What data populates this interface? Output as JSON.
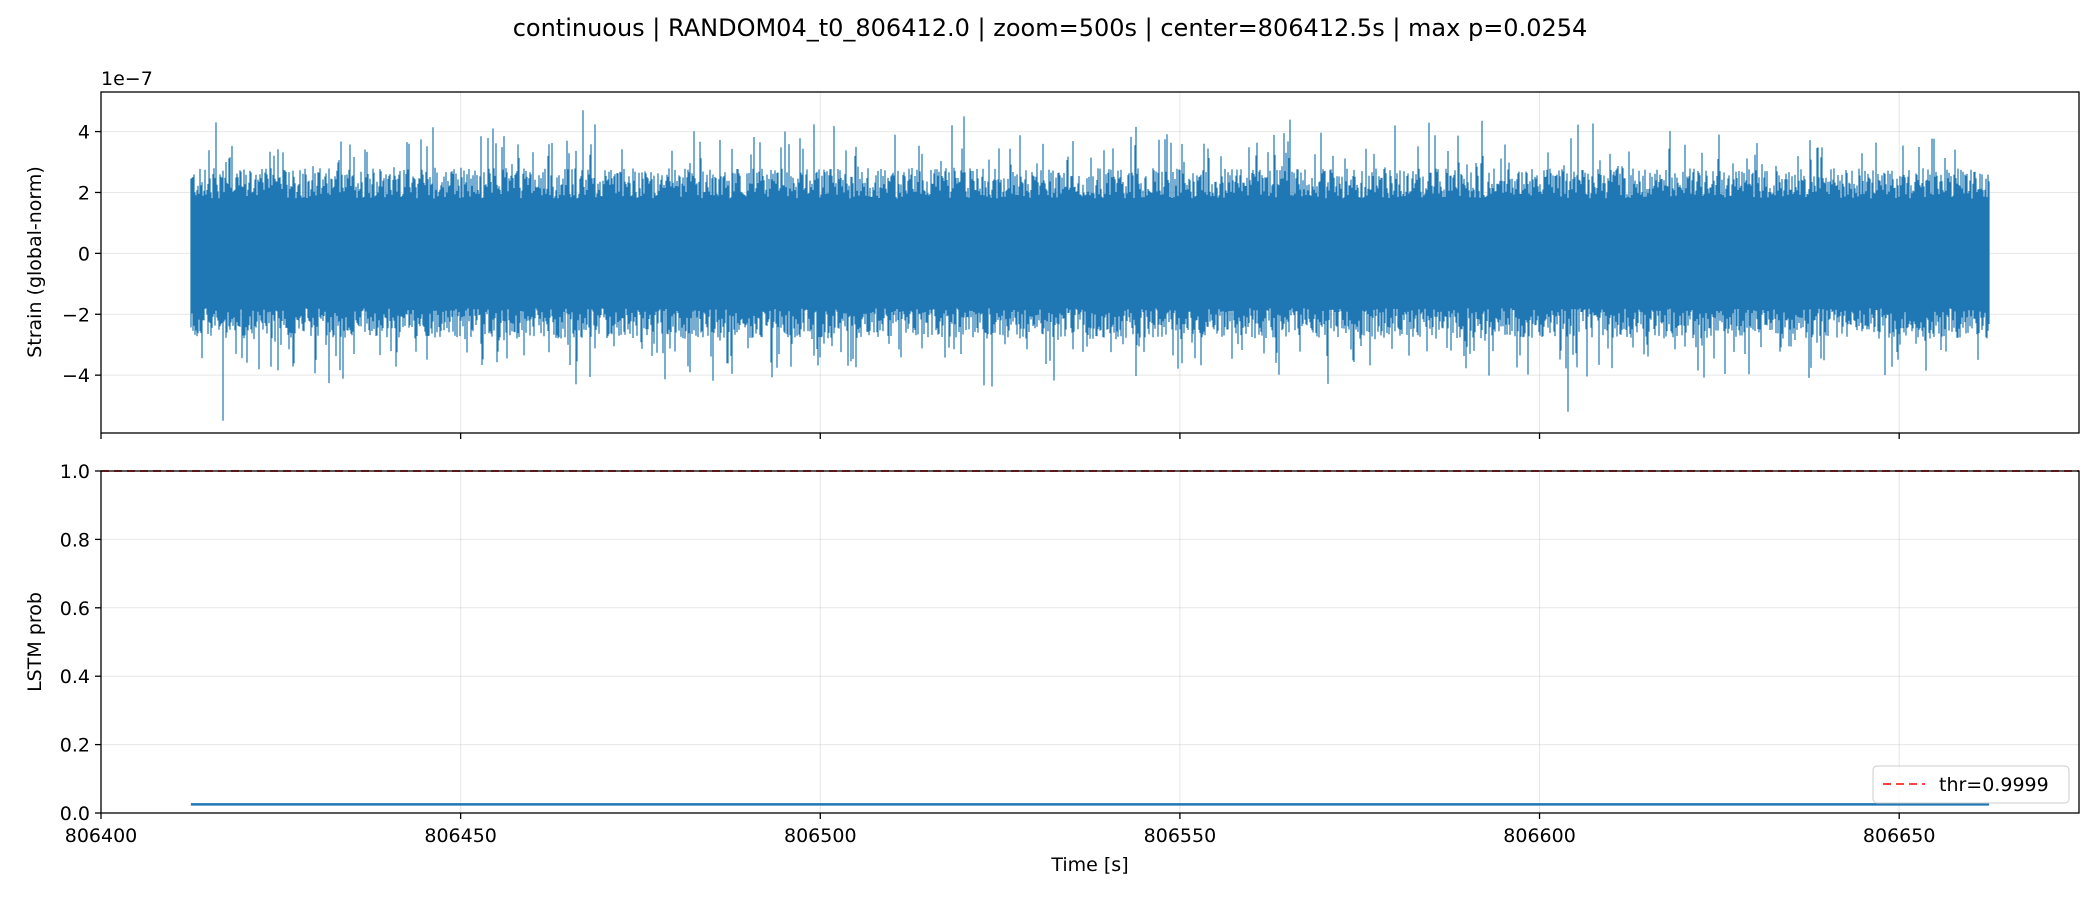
{
  "chart_data": [
    {
      "type": "line",
      "title": "continuous | RANDOM04_t0_806412.0 | zoom=500s | center=806412.5s | max p=0.0254",
      "ylabel": "Strain (global-norm)",
      "offset_text": "1e−7",
      "xlim": [
        806400,
        806675
      ],
      "ylim": [
        -5.9,
        5.3
      ],
      "y_ticks": [
        -4,
        -2,
        0,
        2,
        4
      ],
      "y_tick_labels": [
        "−4",
        "−2",
        "0",
        "2",
        "4"
      ],
      "x_ticks": [
        806400,
        806450,
        806500,
        806550,
        806600,
        806650
      ],
      "grid": true,
      "series": [
        {
          "color": "#1f77b4",
          "x_range": [
            806412.5,
            806662.5
          ],
          "typical_envelope": [
            -1.8,
            1.8
          ],
          "peaks": [
            {
              "x": 806416,
              "y": 4.3
            },
            {
              "x": 806417,
              "y": -5.5
            },
            {
              "x": 806467,
              "y": 4.7
            },
            {
              "x": 806466,
              "y": -4.3
            },
            {
              "x": 806520,
              "y": 4.5
            },
            {
              "x": 806604,
              "y": -5.2
            },
            {
              "x": 806625,
              "y": 3.9
            }
          ]
        }
      ]
    },
    {
      "type": "line",
      "ylabel": "LSTM prob",
      "xlabel": "Time [s]",
      "xlim": [
        806400,
        806675
      ],
      "ylim": [
        0.0,
        1.0
      ],
      "x_ticks": [
        806400,
        806450,
        806500,
        806550,
        806600,
        806650
      ],
      "x_tick_labels": [
        "806400",
        "806450",
        "806500",
        "806550",
        "806600",
        "806650"
      ],
      "y_ticks": [
        0.0,
        0.2,
        0.4,
        0.6,
        0.8,
        1.0
      ],
      "y_tick_labels": [
        "0.0",
        "0.2",
        "0.4",
        "0.6",
        "0.8",
        "1.0"
      ],
      "grid": true,
      "series": [
        {
          "color": "#1f77b4",
          "x": [
            806412.5,
            806662.5
          ],
          "y": [
            0.0254,
            0.0254
          ]
        }
      ],
      "threshold": {
        "value": 0.9999,
        "color": "#ff4444",
        "label": "thr=0.9999"
      },
      "legend_position": "lower-right"
    }
  ]
}
